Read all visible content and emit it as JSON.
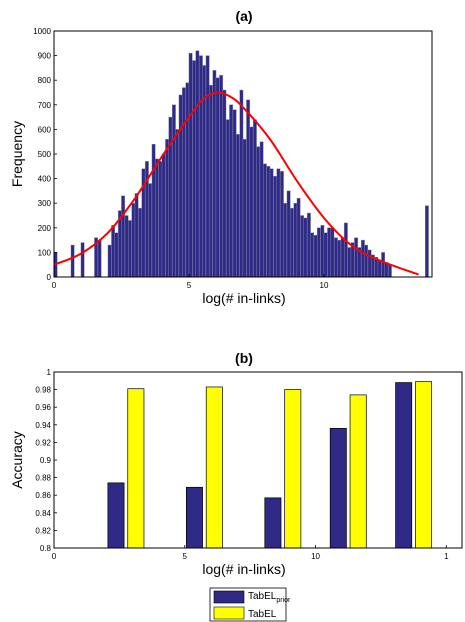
{
  "chart_data": [
    {
      "type": "bar",
      "title": "(a)",
      "xlabel": "log(# in-links)",
      "ylabel": "Frequency",
      "xlim": [
        0,
        14
      ],
      "ylim": [
        0,
        1000
      ],
      "xticks": [
        "0",
        "5",
        "10"
      ],
      "yticks": [
        "0",
        "100",
        "200",
        "300",
        "400",
        "500",
        "600",
        "700",
        "800",
        "900",
        "1000"
      ],
      "histogram": {
        "bin_width": 0.125,
        "x": [
          0.06,
          0.69,
          1.06,
          1.56,
          1.69,
          2.06,
          2.19,
          2.31,
          2.44,
          2.56,
          2.69,
          2.81,
          2.94,
          3.06,
          3.19,
          3.31,
          3.44,
          3.56,
          3.69,
          3.81,
          3.94,
          4.06,
          4.19,
          4.31,
          4.44,
          4.56,
          4.69,
          4.81,
          4.94,
          5.06,
          5.19,
          5.31,
          5.44,
          5.56,
          5.69,
          5.81,
          5.94,
          6.06,
          6.19,
          6.31,
          6.44,
          6.56,
          6.69,
          6.81,
          6.94,
          7.06,
          7.19,
          7.31,
          7.44,
          7.56,
          7.69,
          7.81,
          7.94,
          8.06,
          8.19,
          8.31,
          8.44,
          8.56,
          8.69,
          8.81,
          8.94,
          9.06,
          9.19,
          9.31,
          9.44,
          9.56,
          9.69,
          9.81,
          9.94,
          10.06,
          10.19,
          10.31,
          10.44,
          10.56,
          10.69,
          10.81,
          10.94,
          11.06,
          11.19,
          11.31,
          11.44,
          11.56,
          11.69,
          11.81,
          11.94,
          12.06,
          12.19,
          12.31,
          12.44,
          13.81
        ],
        "values": [
          100,
          130,
          140,
          160,
          150,
          130,
          210,
          180,
          270,
          330,
          250,
          230,
          300,
          340,
          280,
          440,
          470,
          380,
          540,
          480,
          470,
          500,
          560,
          650,
          700,
          600,
          740,
          770,
          790,
          910,
          880,
          920,
          900,
          860,
          900,
          780,
          840,
          810,
          820,
          760,
          640,
          700,
          680,
          580,
          760,
          560,
          720,
          610,
          640,
          530,
          550,
          460,
          450,
          440,
          410,
          440,
          430,
          300,
          350,
          280,
          300,
          320,
          250,
          240,
          260,
          180,
          170,
          200,
          210,
          180,
          200,
          200,
          160,
          150,
          160,
          220,
          120,
          140,
          160,
          120,
          150,
          130,
          110,
          90,
          80,
          70,
          100,
          60,
          50,
          290
        ]
      },
      "fit_curve": {
        "color": "#ff0000",
        "x": [
          0,
          1,
          2,
          3,
          4,
          5,
          5.5,
          6,
          6.5,
          7,
          8,
          9,
          10,
          11,
          12,
          13.5
        ],
        "y": [
          50,
          95,
          180,
          320,
          490,
          650,
          720,
          750,
          735,
          690,
          560,
          390,
          240,
          130,
          70,
          10
        ]
      }
    },
    {
      "type": "bar",
      "title": "(b)",
      "xlabel": "log(# in-links)",
      "ylabel": "Accuracy",
      "xlim": [
        0,
        14
      ],
      "ylim": [
        0.8,
        1.0
      ],
      "xticks": [
        "0",
        "5",
        "10",
        "1"
      ],
      "yticks": [
        "0.8",
        "0.82",
        "0.84",
        "0.86",
        "0.88",
        "0.9",
        "0.92",
        "0.94",
        "0.96",
        "0.98",
        "1"
      ],
      "group_centers": [
        2.75,
        5.75,
        8.75,
        11.25,
        13.75
      ],
      "series": [
        {
          "name": "TabEL",
          "name_sub": "prior",
          "color": "#2e2a86",
          "values": [
            0.874,
            0.869,
            0.857,
            0.936,
            0.988
          ]
        },
        {
          "name": "TabEL",
          "name_sub": "",
          "color": "#ffff00",
          "values": [
            0.981,
            0.983,
            0.98,
            0.974,
            0.989
          ]
        }
      ],
      "legend_position": "bottom"
    }
  ]
}
